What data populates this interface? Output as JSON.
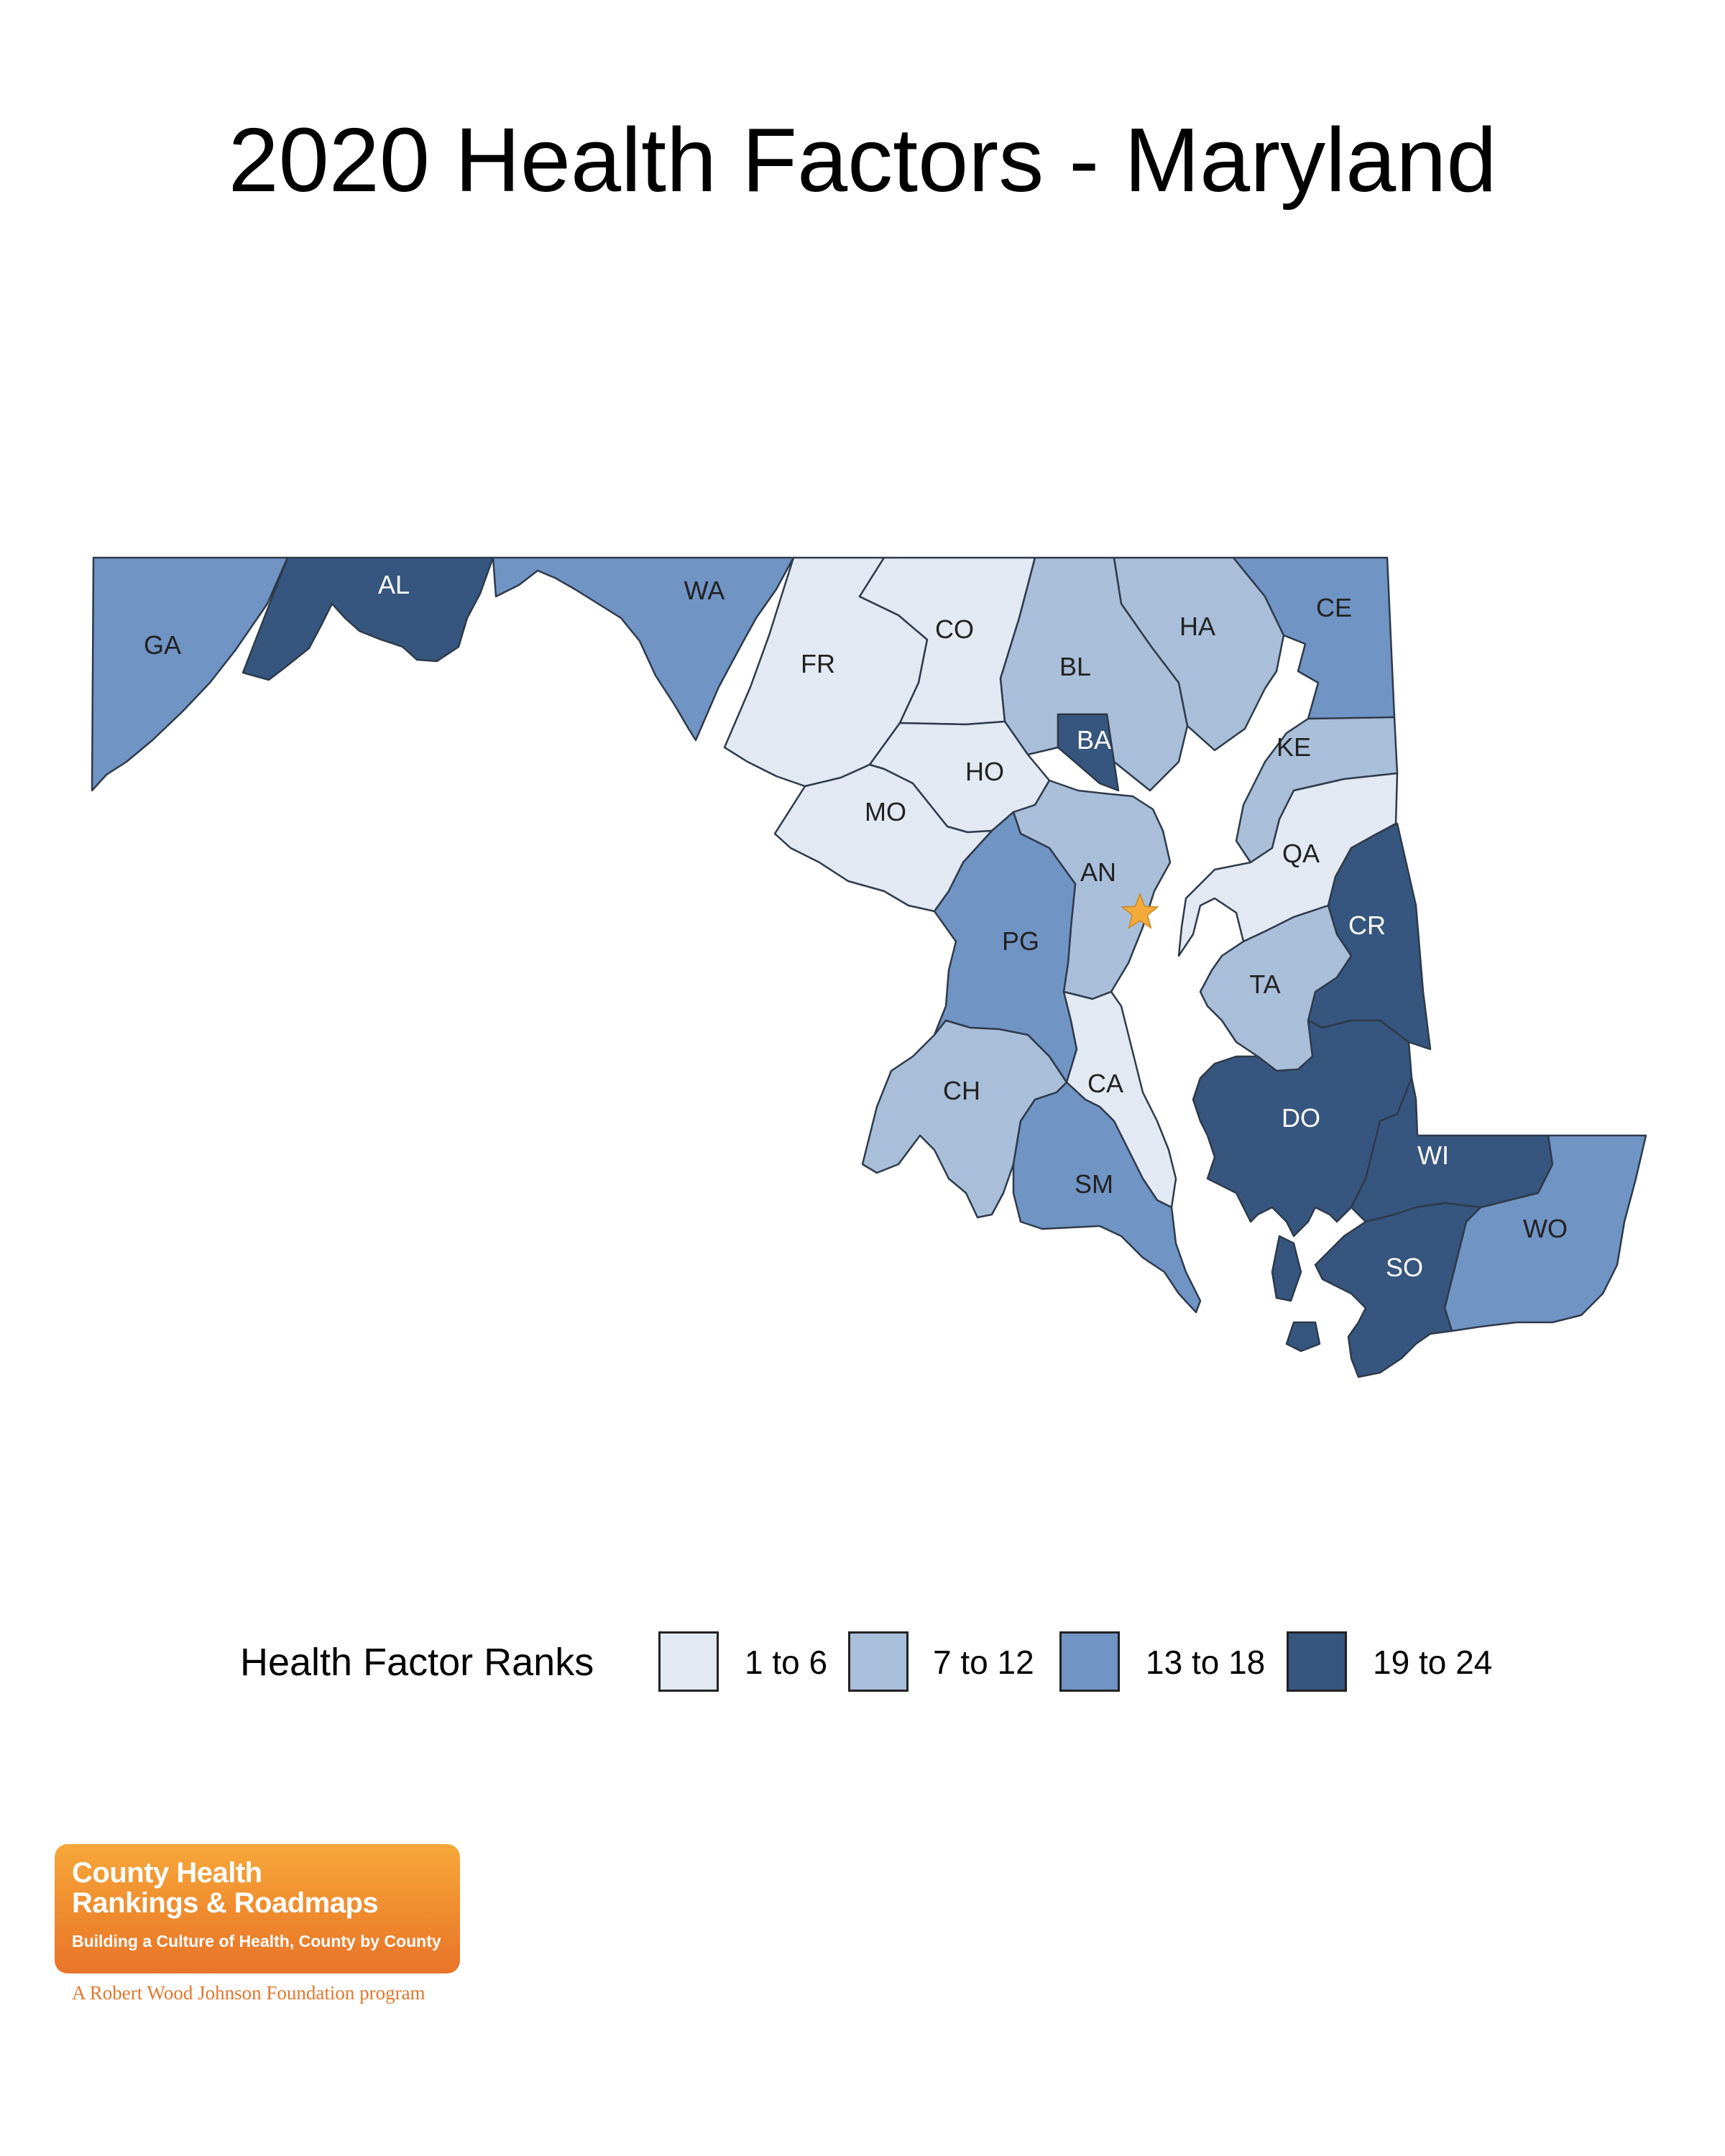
{
  "title": "2020 Health Factors - Maryland",
  "legend": {
    "title": "Health Factor Ranks",
    "classes": [
      {
        "label": "1 to 6",
        "color": "#e2e9f3"
      },
      {
        "label": "7 to 12",
        "color": "#a9bed9"
      },
      {
        "label": "13 to 18",
        "color": "#7094c4"
      },
      {
        "label": "19 to 24",
        "color": "#36567f"
      }
    ]
  },
  "counties": [
    {
      "code": "GA",
      "class": 2
    },
    {
      "code": "AL",
      "class": 3
    },
    {
      "code": "WA",
      "class": 2
    },
    {
      "code": "FR",
      "class": 0
    },
    {
      "code": "CO",
      "class": 0
    },
    {
      "code": "BL",
      "class": 1
    },
    {
      "code": "HA",
      "class": 1
    },
    {
      "code": "CE",
      "class": 2
    },
    {
      "code": "BA",
      "class": 3
    },
    {
      "code": "HO",
      "class": 0
    },
    {
      "code": "KE",
      "class": 1
    },
    {
      "code": "MO",
      "class": 0
    },
    {
      "code": "AN",
      "class": 1
    },
    {
      "code": "QA",
      "class": 0
    },
    {
      "code": "PG",
      "class": 2
    },
    {
      "code": "CR",
      "class": 3
    },
    {
      "code": "TA",
      "class": 1
    },
    {
      "code": "CH",
      "class": 1
    },
    {
      "code": "CA",
      "class": 0
    },
    {
      "code": "DO",
      "class": 3
    },
    {
      "code": "SM",
      "class": 2
    },
    {
      "code": "WI",
      "class": 3
    },
    {
      "code": "WO",
      "class": 2
    },
    {
      "code": "SO",
      "class": 3
    }
  ],
  "capital_marker": {
    "name": "star-marker",
    "color": "#f4a93b"
  },
  "logo": {
    "line1": "County Health",
    "line2": "Rankings & Roadmaps",
    "tagline": "Building a Culture of Health, County by County",
    "sub": "A Robert Wood Johnson Foundation program"
  }
}
